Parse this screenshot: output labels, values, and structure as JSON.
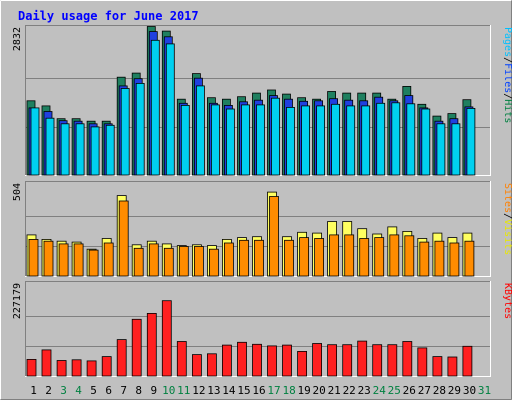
{
  "chart_data": {
    "type": "bar",
    "title": "Daily usage for June 2017",
    "categories": [
      "1",
      "2",
      "3",
      "4",
      "5",
      "6",
      "7",
      "8",
      "9",
      "10",
      "11",
      "12",
      "13",
      "14",
      "15",
      "16",
      "17",
      "18",
      "19",
      "20",
      "21",
      "22",
      "23",
      "24",
      "25",
      "26",
      "27",
      "28",
      "29",
      "30",
      "31"
    ],
    "weekend_days": [
      "3",
      "4",
      "10",
      "11",
      "17",
      "18",
      "24",
      "25",
      "31"
    ],
    "panels": [
      {
        "id": "hits",
        "axis_max_label": "2832",
        "ymax": 2832,
        "legend": [
          {
            "label": "Pages",
            "color": "#00c0ff"
          },
          {
            "label": "/",
            "color": "#000000"
          },
          {
            "label": "Files",
            "color": "#0040ff"
          },
          {
            "label": "/",
            "color": "#000000"
          },
          {
            "label": "Hits",
            "color": "#008040"
          }
        ],
        "series": [
          {
            "name": "Hits",
            "color": "#1f8060",
            "values": [
              1450,
              1350,
              1100,
              1100,
              1050,
              1050,
              1910,
              1990,
              2900,
              2810,
              1480,
              1980,
              1510,
              1480,
              1530,
              1600,
              1660,
              1580,
              1510,
              1480,
              1630,
              1600,
              1600,
              1600,
              1480,
              1730,
              1380,
              1150,
              1200,
              1470,
              0
            ]
          },
          {
            "name": "Files",
            "color": "#2040e0",
            "values": [
              1310,
              1240,
              1060,
              1050,
              1000,
              1000,
              1740,
              1880,
              2800,
              2700,
              1400,
              1890,
              1400,
              1360,
              1430,
              1460,
              1550,
              1480,
              1440,
              1450,
              1490,
              1460,
              1450,
              1520,
              1450,
              1550,
              1310,
              1050,
              1100,
              1330,
              0
            ]
          },
          {
            "name": "Pages",
            "color": "#00d0f0",
            "values": [
              1310,
              1110,
              1000,
              1000,
              940,
              970,
              1690,
              1790,
              2630,
              2560,
              1360,
              1740,
              1370,
              1290,
              1370,
              1370,
              1500,
              1320,
              1350,
              1350,
              1380,
              1350,
              1350,
              1400,
              1410,
              1390,
              1290,
              1000,
              1000,
              1300,
              0
            ]
          }
        ]
      },
      {
        "id": "visits",
        "axis_max_label": "504",
        "ymax": 504,
        "legend": [
          {
            "label": "Sites",
            "color": "#ff8000"
          },
          {
            "label": "/",
            "color": "#000000"
          },
          {
            "label": "Visits",
            "color": "#e8e800"
          }
        ],
        "series": [
          {
            "name": "Visits",
            "color": "#ffff60",
            "values": [
              230,
              205,
              195,
              190,
              150,
              210,
              450,
              175,
              195,
              180,
              170,
              175,
              170,
              205,
              215,
              220,
              470,
              220,
              245,
              240,
              305,
              305,
              265,
              235,
              275,
              250,
              210,
              240,
              215,
              240,
              0
            ]
          },
          {
            "name": "Sites",
            "color": "#ff8c00",
            "values": [
              205,
              195,
              180,
              180,
              145,
              185,
              420,
              155,
              180,
              155,
              165,
              165,
              150,
              185,
              200,
              200,
              445,
              200,
              215,
              210,
              230,
              230,
              210,
              215,
              230,
              225,
              190,
              195,
              185,
              195,
              0
            ]
          }
        ]
      },
      {
        "id": "kbytes",
        "axis_max_label": "227179",
        "ymax": 227179,
        "legend": [
          {
            "label": "KBytes",
            "color": "#ff0000"
          }
        ],
        "series": [
          {
            "name": "KBytes",
            "color": "#ff2020",
            "values": [
              42000,
              66000,
              39000,
              41000,
              38000,
              49000,
              92000,
              143000,
              158000,
              190000,
              87000,
              54000,
              56000,
              78000,
              85000,
              80000,
              76000,
              78000,
              62000,
              82000,
              79000,
              79000,
              88000,
              79000,
              79000,
              87000,
              71000,
              49000,
              48000,
              75000,
              0
            ]
          }
        ]
      }
    ]
  }
}
